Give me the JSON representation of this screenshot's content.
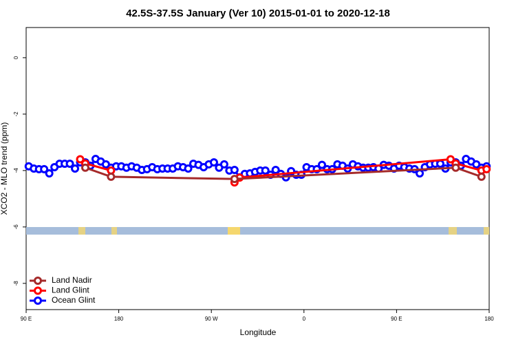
{
  "chart_data": {
    "type": "line",
    "title": "42.5S-37.5S January (Ver 10)   2015-01-01 to 2020-12-18",
    "x_label": "Longitude",
    "y_label": "XCO2 - MLO trend (ppm)",
    "xlim": [
      90,
      540
    ],
    "ylim": [
      -8.93,
      1.07
    ],
    "xticks": [
      {
        "value": 90,
        "label": "90 E"
      },
      180,
      {
        "value": 270,
        "label": "90 W"
      },
      {
        "value": 360,
        "label": "0"
      },
      {
        "value": 450,
        "label": "90 E"
      },
      {
        "value": 540,
        "label": "180"
      }
    ],
    "yticks": [
      0,
      -2,
      -4,
      -6,
      -8
    ],
    "legend": "bottom-left",
    "series": [
      {
        "name": "Land Nadir",
        "color": "#a52a2a",
        "x": [
          147.5,
          172.5,
          292.5,
          507.5,
          532.5
        ],
        "values": [
          -3.9,
          -4.22,
          -4.3,
          -3.9,
          -4.22
        ]
      },
      {
        "name": "Land Glint",
        "color": "#ff0000",
        "x": [
          142.5,
          147.5,
          172.5,
          287.5,
          292.5,
          297.5,
          502.5,
          507.5,
          532.5,
          537.5
        ],
        "values": [
          -3.6,
          -3.75,
          -4.0,
          null,
          -4.42,
          -4.25,
          -3.6,
          -3.75,
          -4.0,
          -3.95
        ]
      },
      {
        "name": "Ocean Glint",
        "color": "#0000ff",
        "x": [
          92.5,
          97.5,
          102.5,
          107.5,
          112.5,
          117.5,
          122.5,
          127.5,
          132.5,
          137.5,
          142.5,
          147.5,
          152.5,
          157.5,
          162.5,
          167.5,
          172.5,
          177.5,
          182.5,
          187.5,
          192.5,
          197.5,
          202.5,
          207.5,
          212.5,
          217.5,
          222.5,
          227.5,
          232.5,
          237.5,
          242.5,
          247.5,
          252.5,
          257.5,
          262.5,
          267.5,
          272.5,
          277.5,
          282.5,
          287.5,
          292.5,
          297.5,
          302.5,
          307.5,
          312.5,
          317.5,
          322.5,
          327.5,
          332.5,
          337.5,
          342.5,
          347.5,
          352.5,
          357.5,
          362.5,
          367.5,
          372.5,
          377.5,
          382.5,
          387.5,
          392.5,
          397.5,
          402.5,
          407.5,
          412.5,
          417.5,
          422.5,
          427.5,
          432.5,
          437.5,
          442.5,
          447.5,
          452.5,
          457.5,
          462.5,
          467.5,
          472.5,
          477.5,
          482.5,
          487.5,
          492.5,
          497.5,
          502.5,
          507.5,
          512.5,
          517.5,
          522.5,
          527.5,
          532.5,
          537.5
        ],
        "values": [
          -3.85,
          -3.93,
          -3.95,
          -3.95,
          -4.1,
          -3.88,
          -3.76,
          -3.76,
          -3.76,
          -3.93,
          -3.71,
          -3.71,
          -3.83,
          -3.59,
          -3.68,
          -3.78,
          -3.9,
          -3.85,
          -3.85,
          -3.9,
          -3.85,
          -3.9,
          -3.98,
          -3.95,
          -3.88,
          -3.95,
          -3.93,
          -3.93,
          -3.93,
          -3.85,
          -3.88,
          -3.93,
          -3.76,
          -3.8,
          -3.88,
          -3.78,
          -3.71,
          -3.9,
          -3.78,
          -4.0,
          -3.98,
          -4.24,
          -4.12,
          -4.1,
          -4.05,
          -4.0,
          -4.0,
          -4.15,
          -3.98,
          -4.12,
          -4.24,
          -4.02,
          -4.15,
          -4.15,
          -3.88,
          -3.95,
          -3.95,
          -3.8,
          -3.95,
          -3.95,
          -3.78,
          -3.83,
          -3.93,
          -3.78,
          -3.85,
          -3.9,
          -3.9,
          -3.88,
          -3.93,
          -3.8,
          -3.83,
          -3.93,
          -3.83,
          -3.88,
          -3.93,
          -3.95,
          -4.1,
          -3.88,
          -3.78,
          -3.76,
          -3.76,
          -3.93,
          -3.71,
          -3.71,
          -3.83,
          -3.59,
          -3.68,
          -3.78,
          -3.9,
          -3.85
        ]
      }
    ]
  }
}
